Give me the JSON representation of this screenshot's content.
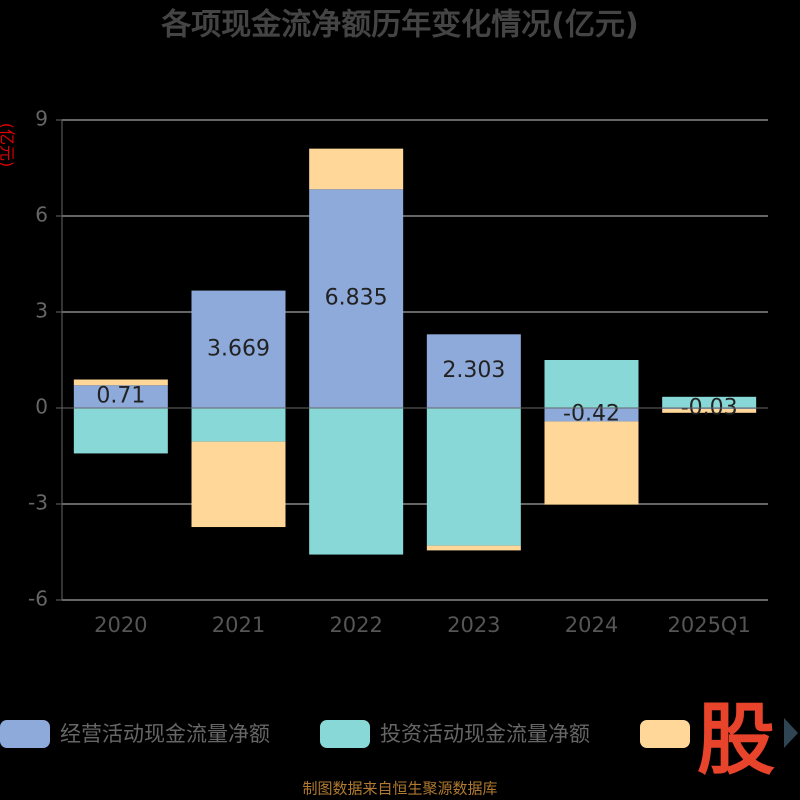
{
  "chart_data": {
    "type": "bar",
    "stacked": true,
    "title": "各项现金流净额历年变化情况(亿元)",
    "y_label": "(亿元)",
    "categories": [
      "2020",
      "2021",
      "2022",
      "2023",
      "2024",
      "2025Q1"
    ],
    "series": [
      {
        "name": "经营活动现金流量净额",
        "color": "#8eaadb",
        "values": [
          0.71,
          3.669,
          6.835,
          2.303,
          -0.42,
          -0.03
        ],
        "data_labels": true
      },
      {
        "name": "投资活动现金流量净额",
        "color": "#88d8d8",
        "values": [
          -1.42,
          -1.05,
          -4.58,
          -4.3,
          1.5,
          0.35
        ]
      },
      {
        "color": "#ffd899",
        "values": [
          0.18,
          -2.67,
          1.27,
          -0.15,
          -2.6,
          -0.12
        ]
      }
    ],
    "ylim": [
      -6,
      9
    ],
    "yticks": [
      -6,
      -3,
      0,
      3,
      6,
      9
    ],
    "grid": true,
    "source": "制图数据来自恒生聚源数据库",
    "watermark": "股"
  }
}
